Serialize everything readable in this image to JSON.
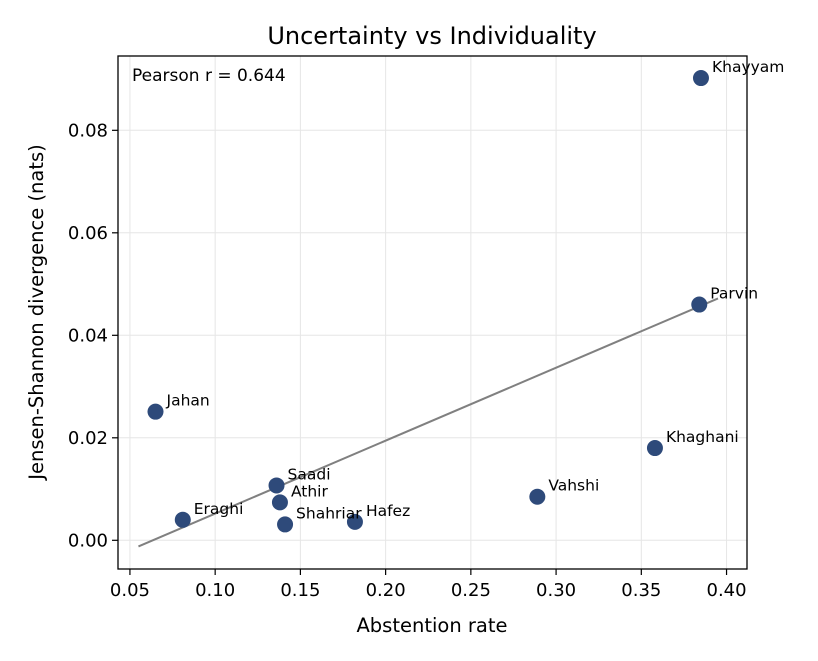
{
  "chart_data": {
    "type": "scatter",
    "title": "Uncertainty vs Individuality",
    "xlabel": "Abstention rate",
    "ylabel": "Jensen-Shannon divergence (nats)",
    "xlim": [
      0.043,
      0.412
    ],
    "ylim": [
      -0.0056,
      0.0945
    ],
    "xticks": [
      0.05,
      0.1,
      0.15,
      0.2,
      0.25,
      0.3,
      0.35,
      0.4
    ],
    "xtick_labels": [
      "0.05",
      "0.10",
      "0.15",
      "0.20",
      "0.25",
      "0.30",
      "0.35",
      "0.40"
    ],
    "yticks": [
      0.0,
      0.02,
      0.04,
      0.06,
      0.08
    ],
    "ytick_labels": [
      "0.00",
      "0.02",
      "0.04",
      "0.06",
      "0.08"
    ],
    "grid": true,
    "annotation": "Pearson r = 0.644",
    "point_color": "#2e4a7a",
    "trend_color": "#808080",
    "points": [
      {
        "label": "Khayyam",
        "x": 0.385,
        "y": 0.0902
      },
      {
        "label": "Parvin",
        "x": 0.384,
        "y": 0.046
      },
      {
        "label": "Jahan",
        "x": 0.065,
        "y": 0.0251
      },
      {
        "label": "Khaghani",
        "x": 0.358,
        "y": 0.018
      },
      {
        "label": "Saadi",
        "x": 0.136,
        "y": 0.0107
      },
      {
        "label": "Athir",
        "x": 0.138,
        "y": 0.0074
      },
      {
        "label": "Vahshi",
        "x": 0.289,
        "y": 0.0085
      },
      {
        "label": "Eraghi",
        "x": 0.081,
        "y": 0.004
      },
      {
        "label": "Shahriar",
        "x": 0.141,
        "y": 0.0031
      },
      {
        "label": "Hafez",
        "x": 0.182,
        "y": 0.0036
      }
    ],
    "trendline": {
      "x": [
        0.055,
        0.395
      ],
      "y": [
        -0.0012,
        0.0472
      ]
    }
  }
}
